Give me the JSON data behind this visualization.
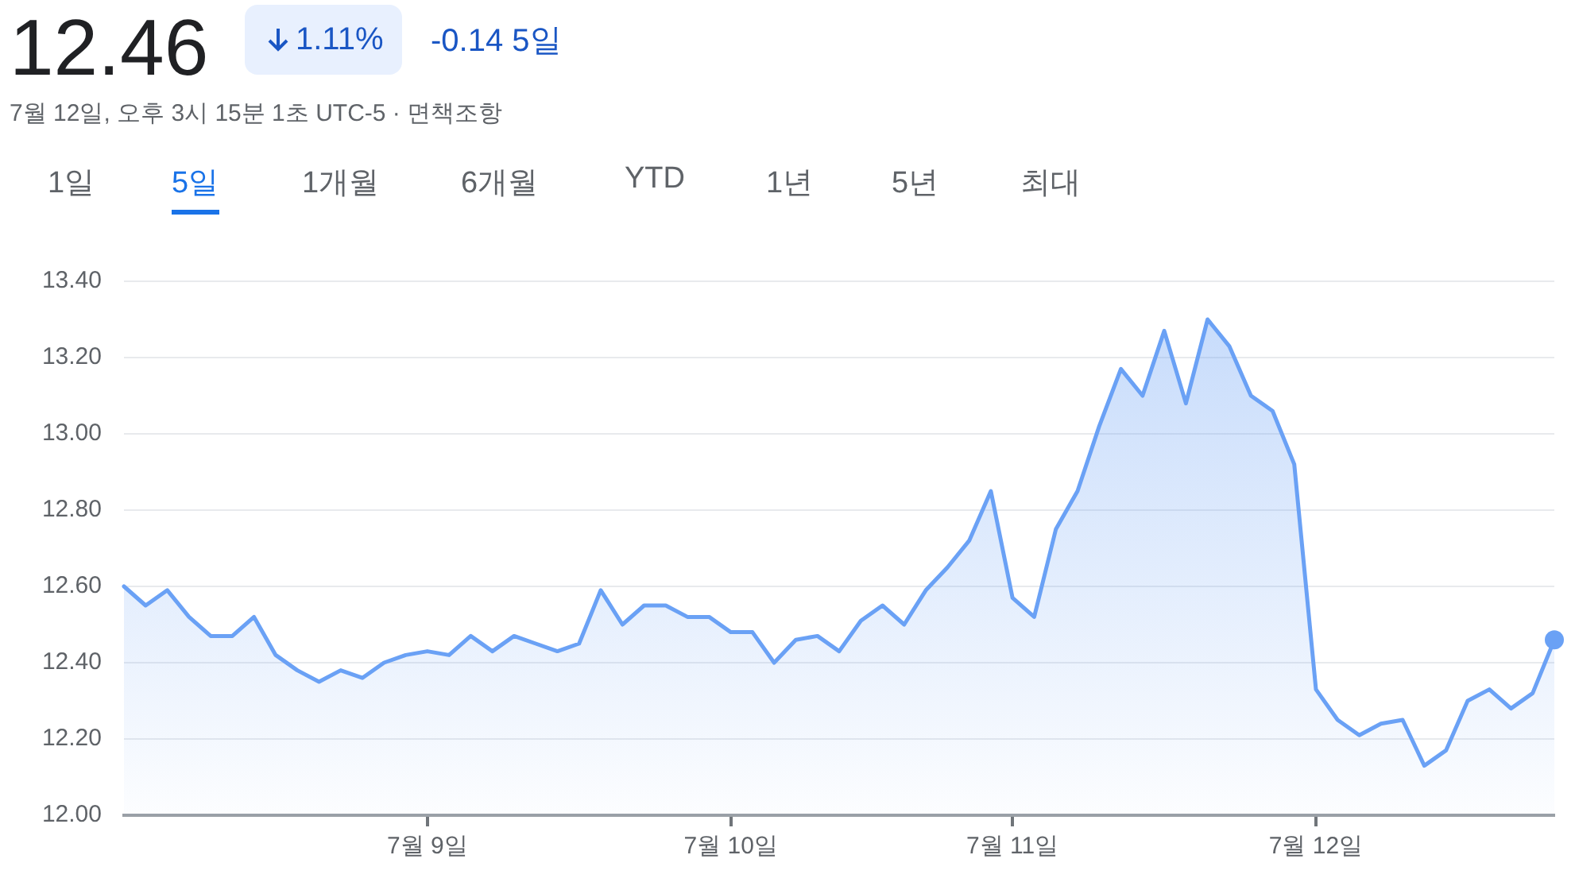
{
  "chart_data": {
    "type": "area",
    "title": "12.46",
    "subtitle": "7월 12일, 오후 3시 15분 1초 UTC-5 · 면책조항",
    "annotations": [
      "1.11%",
      "-0.14 5일",
      "1일",
      "5일",
      "1개월",
      "6개월",
      "YTD",
      "1년",
      "5년",
      "최대"
    ],
    "categories": [
      null,
      null,
      null,
      null,
      null,
      null,
      null,
      null,
      null,
      null,
      null,
      null,
      null,
      null,
      "7월 9일",
      null,
      null,
      null,
      null,
      null,
      null,
      null,
      null,
      null,
      null,
      null,
      null,
      null,
      "7월 10일",
      null,
      null,
      null,
      null,
      null,
      null,
      null,
      null,
      null,
      null,
      null,
      null,
      "7월 11일",
      null,
      null,
      null,
      null,
      null,
      null,
      null,
      null,
      null,
      null,
      null,
      null,
      null,
      "7월 12일",
      null,
      null,
      null,
      null,
      null,
      null,
      null,
      null,
      null,
      null,
      null
    ],
    "series": [
      {
        "color": "#6aa1f5",
        "values": [
          12.6,
          12.55,
          12.59,
          12.52,
          12.47,
          12.47,
          12.52,
          12.42,
          12.38,
          12.35,
          12.38,
          12.36,
          12.4,
          12.42,
          12.43,
          12.42,
          12.47,
          12.43,
          12.47,
          12.45,
          12.43,
          12.45,
          12.59,
          12.5,
          12.55,
          12.55,
          12.52,
          12.52,
          12.48,
          12.48,
          12.4,
          12.46,
          12.47,
          12.43,
          12.51,
          12.55,
          12.5,
          12.59,
          12.65,
          12.72,
          12.85,
          12.57,
          12.52,
          12.75,
          12.85,
          13.02,
          13.17,
          13.1,
          13.27,
          13.08,
          13.3,
          13.23,
          13.1,
          13.06,
          12.92,
          12.33,
          12.25,
          12.21,
          12.24,
          12.25,
          12.13,
          12.17,
          12.3,
          12.33,
          12.28,
          12.32,
          12.46
        ]
      }
    ],
    "ylim": [
      12.0,
      13.4
    ],
    "yticks": [
      {
        "value": 12.0,
        "label": "12.00"
      },
      {
        "value": 12.2,
        "label": "12.20"
      },
      {
        "value": 12.4,
        "label": "12.40"
      },
      {
        "value": 12.6,
        "label": "12.60"
      },
      {
        "value": 12.8,
        "label": "12.80"
      },
      {
        "value": 13.0,
        "label": "13.00"
      },
      {
        "value": 13.2,
        "label": "13.20"
      },
      {
        "value": 13.4,
        "label": "13.40"
      }
    ],
    "grid": "y",
    "legend": false,
    "marker": "none",
    "line_style": "solid"
  }
}
